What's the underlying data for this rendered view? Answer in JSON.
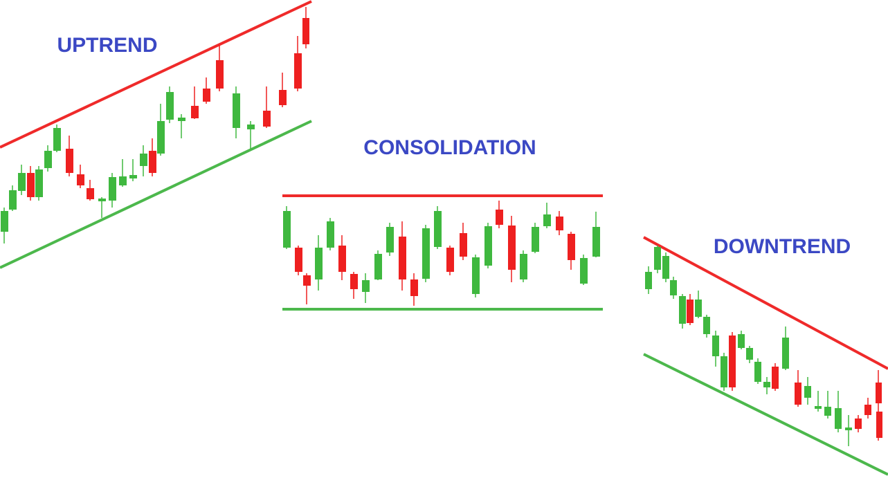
{
  "labels": {
    "uptrend": "UPTREND",
    "consolidation": "CONSOLIDATION",
    "downtrend": "DOWNTREND"
  }
}
